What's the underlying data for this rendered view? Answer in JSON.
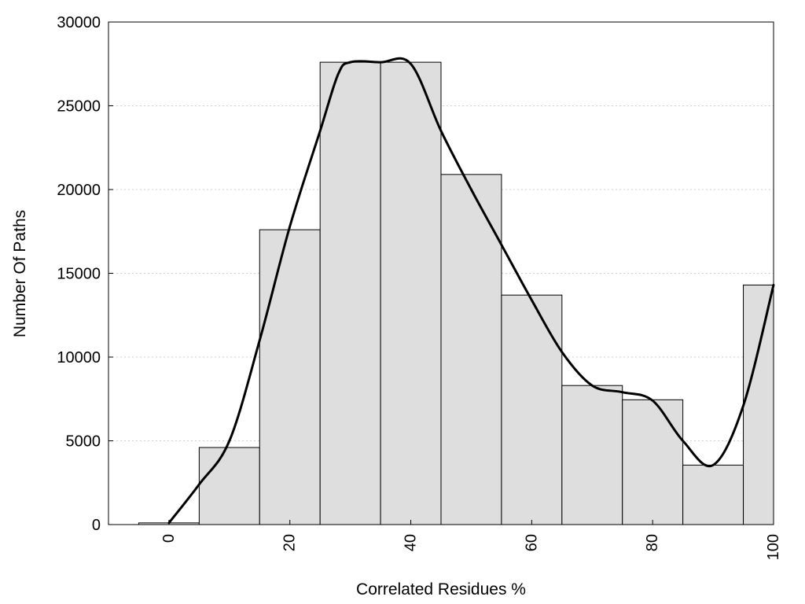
{
  "chart_data": {
    "type": "bar",
    "title": "",
    "xlabel": "Correlated Residues %",
    "ylabel": "Number Of Paths",
    "xlim": [
      -10,
      100
    ],
    "ylim": [
      0,
      30000
    ],
    "grid": true,
    "bin_width": 10,
    "x_ticks": [
      0,
      20,
      40,
      60,
      80,
      100
    ],
    "x_tick_labels": [
      "0",
      "20",
      "40",
      "60",
      "80",
      "100"
    ],
    "y_ticks": [
      0,
      5000,
      10000,
      15000,
      20000,
      25000,
      30000
    ],
    "y_tick_labels": [
      "0",
      "5000",
      "10000",
      "15000",
      "20000",
      "25000",
      "30000"
    ],
    "bins": [
      {
        "center": 0,
        "value": 100
      },
      {
        "center": 10,
        "value": 4600
      },
      {
        "center": 20,
        "value": 17600
      },
      {
        "center": 30,
        "value": 27600
      },
      {
        "center": 40,
        "value": 27600
      },
      {
        "center": 50,
        "value": 20900
      },
      {
        "center": 60,
        "value": 13700
      },
      {
        "center": 70,
        "value": 8300
      },
      {
        "center": 80,
        "value": 7450
      },
      {
        "center": 90,
        "value": 3550
      },
      {
        "center": 100,
        "value": 14300
      }
    ],
    "trend_line": {
      "x": [
        0,
        5,
        10,
        15,
        20,
        25,
        28,
        30,
        35,
        40,
        45,
        50,
        55,
        60,
        65,
        70,
        75,
        80,
        85,
        90,
        95,
        100
      ],
      "y": [
        100,
        2400,
        5000,
        11000,
        17800,
        23500,
        26900,
        27600,
        27600,
        27500,
        23500,
        20000,
        16700,
        13400,
        10300,
        8300,
        7900,
        7400,
        5000,
        3550,
        7100,
        14300
      ]
    }
  }
}
